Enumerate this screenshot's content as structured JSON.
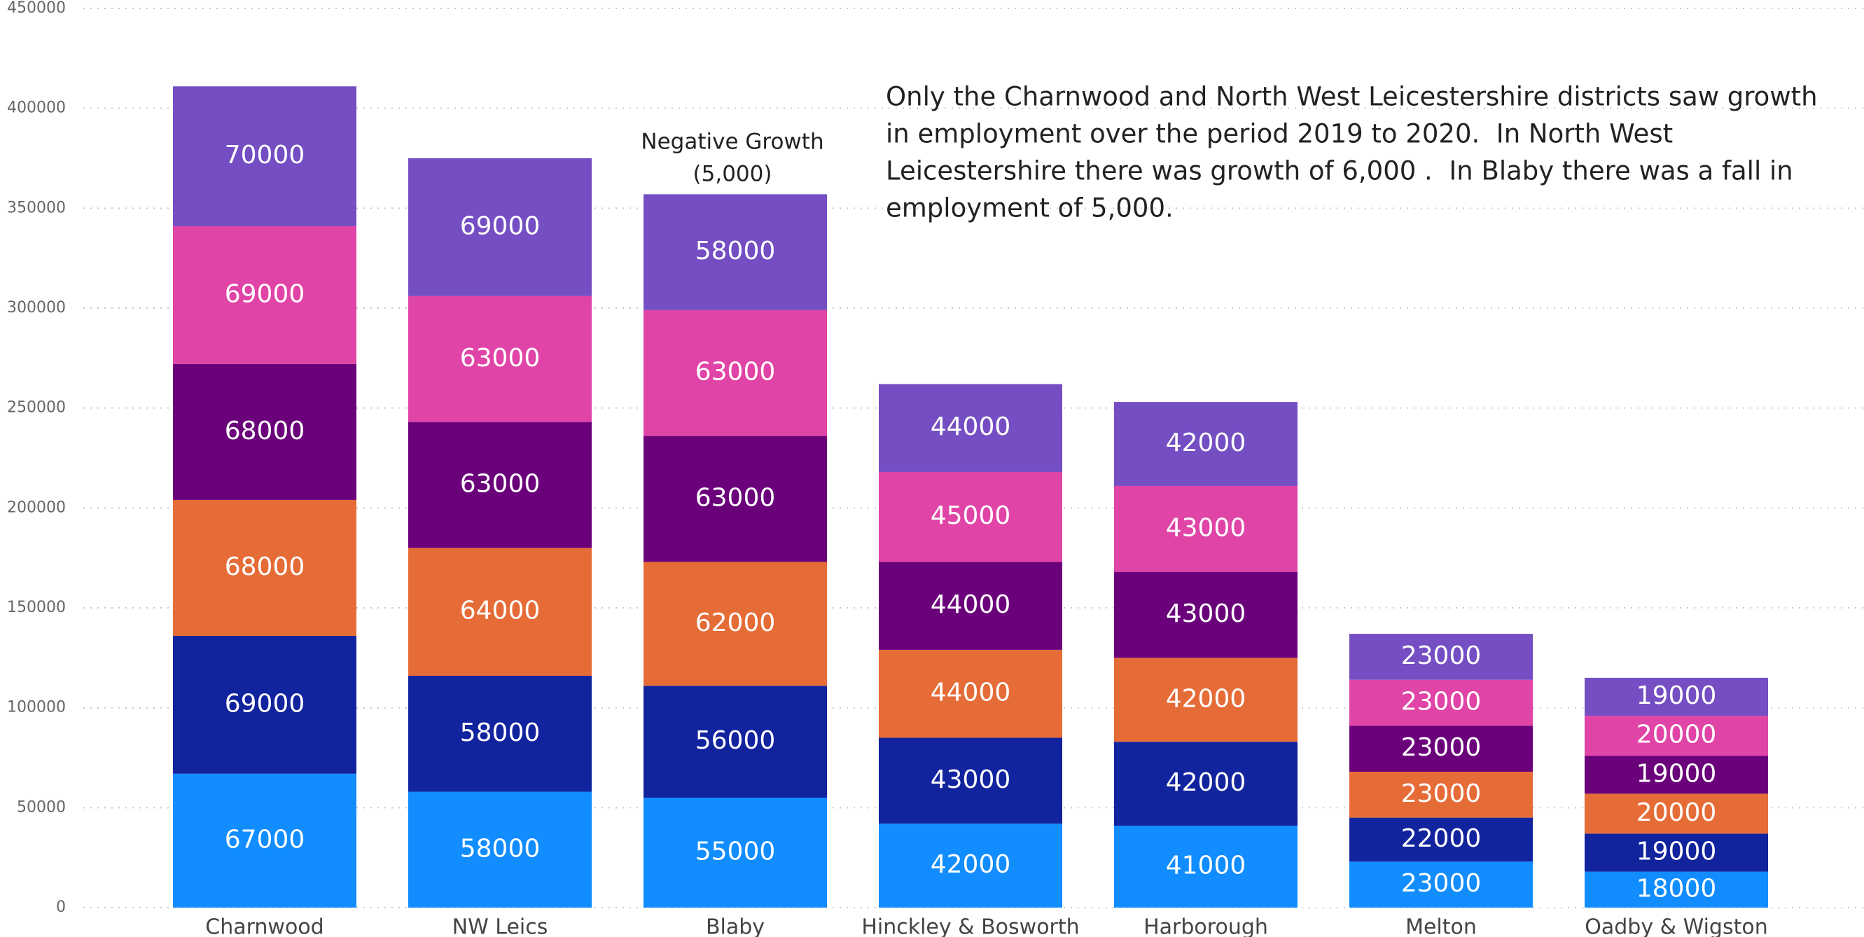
{
  "chart_data": {
    "type": "stacked_bar",
    "categories": [
      "Charnwood",
      "NW Leics",
      "Blaby",
      "Hinckley & Bosworth",
      "Harborough",
      "Melton",
      "Oadby & Wigston"
    ],
    "series": [
      {
        "color": "#118DFF",
        "values": [
          67000,
          58000,
          55000,
          42000,
          41000,
          23000,
          18000
        ]
      },
      {
        "color": "#12239E",
        "values": [
          69000,
          58000,
          56000,
          43000,
          42000,
          22000,
          19000
        ]
      },
      {
        "color": "#E66C37",
        "values": [
          68000,
          64000,
          62000,
          44000,
          42000,
          23000,
          20000
        ]
      },
      {
        "color": "#6B007B",
        "values": [
          68000,
          63000,
          63000,
          44000,
          43000,
          23000,
          19000
        ]
      },
      {
        "color": "#E044A7",
        "values": [
          69000,
          63000,
          63000,
          45000,
          43000,
          23000,
          20000
        ]
      },
      {
        "color": "#744EC2",
        "values": [
          70000,
          69000,
          58000,
          44000,
          42000,
          23000,
          19000
        ]
      }
    ],
    "ylim": [
      0,
      450000
    ],
    "yticks": [
      0,
      50000,
      100000,
      150000,
      200000,
      250000,
      300000,
      350000,
      400000,
      450000
    ],
    "grid": true,
    "annotations": {
      "bar_note": [
        "Negative Growth",
        "(5,000)"
      ],
      "text": [
        "Only the Charnwood and North West Leicestershire districts saw growth",
        "in employment over the period 2019 to 2020.  In North West",
        "Leicestershire there was growth of 6,000 .  In Blaby there was a fall in",
        "employment of 5,000."
      ]
    }
  }
}
